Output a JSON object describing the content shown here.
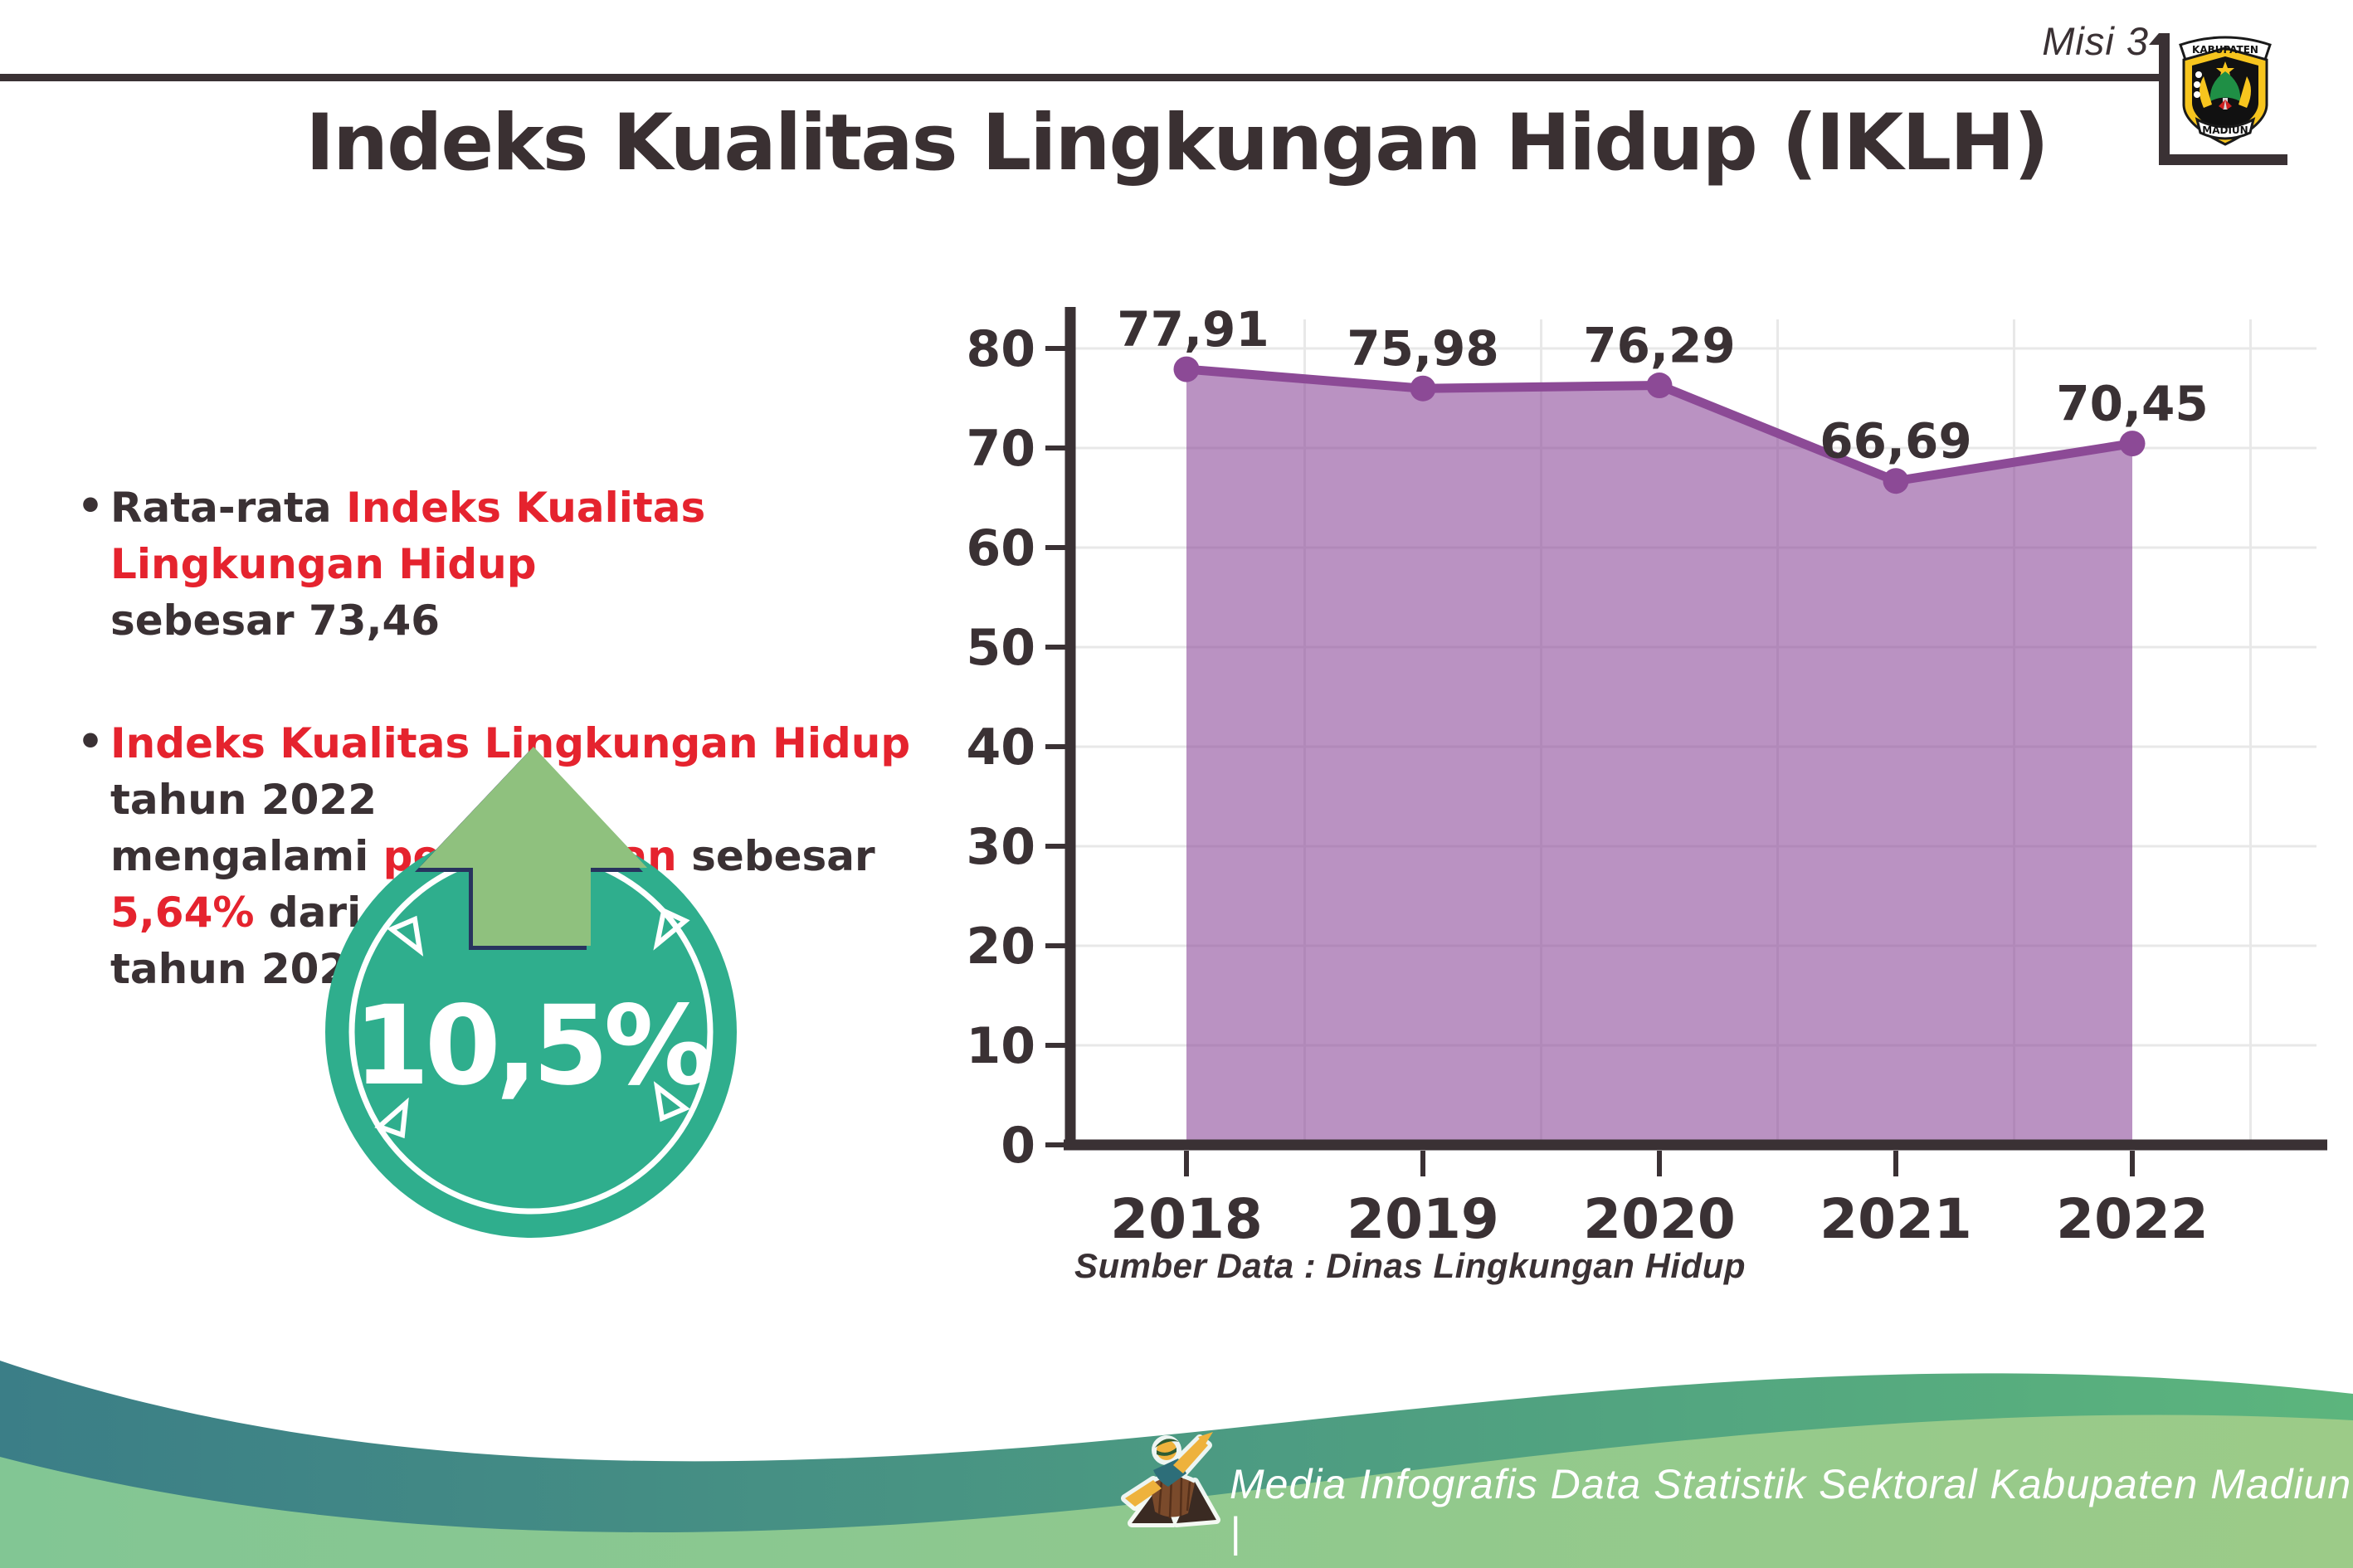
{
  "page": {
    "background": "#ffffff"
  },
  "header": {
    "misi_label": "Misi 3",
    "logo": {
      "top_text": "KABUPATEN",
      "bottom_text": "MADIUN"
    }
  },
  "title": "Indeks Kualitas Lingkungan Hidup (IKLH)",
  "bullets": {
    "bullet_char": "•",
    "b1_l1_a": "Rata-rata ",
    "b1_l1_b": "Indeks Kualitas Lingkungan Hidup",
    "b1_l2": "sebesar 73,46",
    "b2_l1_a": "Indeks Kualitas Lingkungan Hidup",
    "b2_l1_b": " tahun 2022",
    "b2_l2_a": "mengalami ",
    "b2_l2_b": "peningkatan",
    "b2_l2_c": " sebesar ",
    "b2_l2_d": "5,64%",
    "b2_l2_e": " dari",
    "b2_l3": "tahun 2021"
  },
  "badge": {
    "value": "10,5%",
    "circle_color": "#2fae8d",
    "arrow_color": "#8fc17e",
    "arrow_outline_color": "#28345e"
  },
  "chart_data": {
    "type": "area",
    "title": "",
    "xlabel": "",
    "ylabel": "",
    "categories": [
      "2018",
      "2019",
      "2020",
      "2021",
      "2022"
    ],
    "values": [
      77.91,
      75.98,
      76.29,
      66.69,
      70.45
    ],
    "value_labels": [
      "77,91",
      "75,98",
      "76,29",
      "66,69",
      "70,45"
    ],
    "ylim": [
      0,
      80
    ],
    "ytick_step": 10,
    "ytick_labels": [
      "0",
      "10",
      "20",
      "30",
      "40",
      "50",
      "60",
      "70",
      "80"
    ],
    "grid": true,
    "legend": "none",
    "line_color": "#8c4a96",
    "fill_color": "rgba(143,79,157,0.62)",
    "axis_color": "#3a3134",
    "gridline_color": "#e8e8e8",
    "label_color": "#3a3134"
  },
  "source_note": "Sumber Data : Dinas Lingkungan Hidup",
  "footer": {
    "text": "Media Infografis Data Statistik Sektoral Kabupaten Madiun |",
    "wave_teal_left": "#3b7e87",
    "wave_teal_right": "#5cb57d",
    "wave_light_left": "#82c694",
    "wave_light_right": "#9ccb88"
  }
}
